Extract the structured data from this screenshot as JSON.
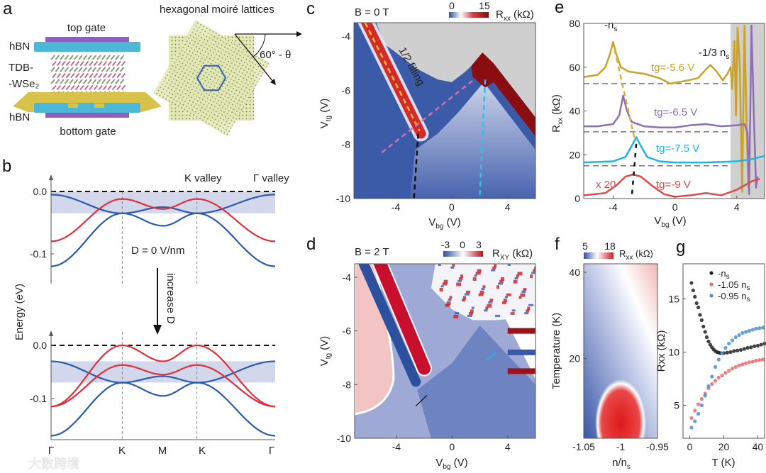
{
  "panel_a": {
    "label": "a",
    "top_gate": "top gate",
    "bottom_gate": "bottom gate",
    "hbn_top": "hBN",
    "hbn_bottom": "hBN",
    "material_line1": "TDB-",
    "material_line2": "-WSe₂",
    "moire_title": "hexagonal moiré lattices",
    "angle_label": "60° - θ"
  },
  "watermark": "大数跨境",
  "chart_data": [
    {
      "panel": "b",
      "label": "b",
      "type": "line",
      "title": "",
      "xlabel": "",
      "ylabel": "Energy (eV)",
      "xticks": [
        "Γ",
        "K",
        "M",
        "K",
        "Γ"
      ],
      "annotations": {
        "k_valley": "K valley",
        "gamma_valley": "Γ valley",
        "d_zero": "D = 0 V/nm",
        "increase_d": "increase D"
      },
      "colors": {
        "k_band": "#e0303c",
        "gamma_band": "#2a5caa",
        "shade": "#c8cde6"
      },
      "subplots": [
        {
          "name": "D = 0 V/nm",
          "yticks": [
            "0.0",
            "-0.1"
          ],
          "ylim": [
            -0.145,
            0.01
          ],
          "shade": [
            -0.035,
            0.0
          ],
          "bands": [
            {
              "valley": "Γ",
              "values": [
                -0.005,
                -0.035,
                -0.055,
                -0.035,
                -0.005
              ]
            },
            {
              "valley": "Γ",
              "values": [
                -0.12,
                -0.035,
                -0.025,
                -0.035,
                -0.12
              ]
            },
            {
              "valley": "K",
              "values": [
                -0.08,
                -0.012,
                -0.028,
                -0.012,
                -0.08
              ]
            }
          ]
        },
        {
          "name": "increased D",
          "yticks": [
            "0.0",
            "-0.1"
          ],
          "ylim": [
            -0.178,
            0.025
          ],
          "shade": [
            -0.07,
            -0.03
          ],
          "bands": [
            {
              "valley": "Γ",
              "values": [
                -0.03,
                -0.07,
                -0.095,
                -0.07,
                -0.03
              ]
            },
            {
              "valley": "Γ",
              "values": [
                -0.17,
                -0.07,
                -0.058,
                -0.07,
                -0.17
              ]
            },
            {
              "valley": "K",
              "values": [
                -0.115,
                0.0,
                -0.03,
                0.0,
                -0.115
              ]
            },
            {
              "valley": "K",
              "values": [
                -0.115,
                -0.037,
                -0.055,
                -0.037,
                -0.115
              ]
            }
          ]
        }
      ]
    },
    {
      "panel": "c",
      "label": "c",
      "type": "heatmap",
      "title": "B = 0 T",
      "xlabel": "V",
      "xlabel_sub": "bg",
      "xlabel_unit": " (V)",
      "ylabel": "V",
      "ylabel_sub": "tg",
      "ylabel_unit": " (V)",
      "xlim": [
        -7,
        6
      ],
      "ylim": [
        -10,
        -3.5
      ],
      "xticks": [
        -4,
        0,
        4
      ],
      "yticks": [
        -4,
        -6,
        -8,
        -10
      ],
      "colorbar": {
        "min": "0",
        "max": "15",
        "label": "R",
        "label_sub": "xx",
        "unit": " (kΩ)"
      },
      "annotation": "1/2 filling"
    },
    {
      "panel": "d",
      "label": "d",
      "type": "heatmap",
      "title": "B = 2 T",
      "xlabel": "V",
      "xlabel_sub": "bg",
      "xlabel_unit": " (V)",
      "ylabel": "V",
      "ylabel_sub": "tg",
      "ylabel_unit": " (V)",
      "xlim": [
        -7,
        6
      ],
      "ylim": [
        -10,
        -3.5
      ],
      "xticks": [
        -4,
        0,
        4
      ],
      "yticks": [
        -4,
        -6,
        -8,
        -10
      ],
      "colorbar": {
        "min": "-3",
        "mid": "0",
        "max": "3",
        "label": "R",
        "label_sub": "XY",
        "unit": " (kΩ)"
      }
    },
    {
      "panel": "e",
      "label": "e",
      "type": "line",
      "xlabel": "V",
      "xlabel_sub": "bg",
      "xlabel_unit": " (V)",
      "ylabel": "R",
      "ylabel_sub": "xx",
      "ylabel_unit": " (kΩ)",
      "xlim": [
        -5.9,
        5.8
      ],
      "ylim": [
        0,
        80
      ],
      "xticks": [
        -4,
        0,
        4
      ],
      "yticks": [
        0,
        20,
        40,
        60,
        80
      ],
      "shaded_from": 3.6,
      "baselines": [
        52.5,
        30.5,
        15
      ],
      "annotations": {
        "neg_ns": "-n",
        "neg_ns_sub": "s",
        "third": "-1/3 n",
        "third_sub": "s",
        "x20": "x 20"
      },
      "series": [
        {
          "name": "tg=-5.6 V",
          "color": "#c9a227",
          "points": [
            [
              -5.9,
              55.5
            ],
            [
              -5,
              56.5
            ],
            [
              -4.5,
              60
            ],
            [
              -4.2,
              66
            ],
            [
              -4.0,
              71.5
            ],
            [
              -3.8,
              66
            ],
            [
              -3.5,
              60
            ],
            [
              -3,
              58
            ],
            [
              -2,
              57
            ],
            [
              -1,
              55
            ],
            [
              -0.3,
              52.5
            ],
            [
              0.5,
              53.5
            ],
            [
              1.5,
              55
            ],
            [
              2.0,
              59
            ],
            [
              2.3,
              61
            ],
            [
              2.7,
              58
            ],
            [
              3.1,
              54
            ],
            [
              3.4,
              57
            ],
            [
              3.6,
              60
            ],
            [
              3.7,
              50
            ],
            [
              3.85,
              72
            ],
            [
              3.95,
              38
            ],
            [
              4.05,
              78
            ],
            [
              4.2,
              60
            ],
            [
              4.35,
              3
            ],
            [
              4.5,
              79
            ],
            [
              4.65,
              30
            ],
            [
              4.75,
              5
            ]
          ]
        },
        {
          "name": "tg=-6.5 V",
          "color": "#8e6fb5",
          "points": [
            [
              -5.9,
              33
            ],
            [
              -5,
              33
            ],
            [
              -4,
              34
            ],
            [
              -3.6,
              38
            ],
            [
              -3.35,
              47
            ],
            [
              -3.1,
              40
            ],
            [
              -2.8,
              35
            ],
            [
              -2,
              33
            ],
            [
              -1,
              32.5
            ],
            [
              0,
              32.5
            ],
            [
              1,
              33.5
            ],
            [
              2,
              34
            ],
            [
              3,
              33
            ],
            [
              4,
              33.5
            ],
            [
              4.5,
              34
            ],
            [
              4.7,
              30
            ],
            [
              4.8,
              2
            ],
            [
              4.95,
              79
            ],
            [
              5.1,
              40
            ],
            [
              5.25,
              5
            ],
            [
              5.35,
              10
            ]
          ]
        },
        {
          "name": "tg=-7.5 V",
          "color": "#1eb4e0",
          "points": [
            [
              -5.9,
              16.5
            ],
            [
              -4,
              17
            ],
            [
              -3.2,
              19
            ],
            [
              -2.8,
              24
            ],
            [
              -2.5,
              28
            ],
            [
              -2.2,
              24
            ],
            [
              -1.8,
              19
            ],
            [
              -1,
              17
            ],
            [
              0,
              16.5
            ],
            [
              2,
              16.5
            ],
            [
              4,
              17
            ],
            [
              5,
              18
            ],
            [
              5.8,
              19.5
            ]
          ]
        },
        {
          "name": "tg=-9 V",
          "color": "#e04a4a",
          "points": [
            [
              -5.9,
              1.5
            ],
            [
              -4.5,
              2.5
            ],
            [
              -3.8,
              6
            ],
            [
              -3.2,
              10
            ],
            [
              -2.7,
              11
            ],
            [
              -2.2,
              10
            ],
            [
              -1.5,
              6
            ],
            [
              -0.7,
              2
            ],
            [
              0,
              0.8
            ],
            [
              1,
              1.5
            ],
            [
              2,
              2.5
            ],
            [
              2.5,
              2
            ],
            [
              3,
              1.5
            ],
            [
              4,
              4
            ],
            [
              5,
              8
            ],
            [
              5.5,
              9
            ]
          ]
        }
      ]
    },
    {
      "panel": "f",
      "label": "f",
      "type": "heatmap",
      "xlabel": "n/n",
      "xlabel_sub": "s",
      "ylabel": "Temperature (K)",
      "xlim": [
        -1.05,
        -0.95
      ],
      "ylim": [
        1.5,
        42
      ],
      "xticks": [
        "-1.05",
        "-1",
        "-0.95"
      ],
      "yticks": [
        20,
        40
      ],
      "colorbar": {
        "min": "5",
        "max": "18",
        "label": "R",
        "label_sub": "xx",
        "unit": " (kΩ)"
      }
    },
    {
      "panel": "g",
      "label": "g",
      "type": "scatter",
      "xlabel": "T (K)",
      "ylabel": "Rxx (kΩ)",
      "xlim": [
        -4,
        44
      ],
      "ylim": [
        1.9,
        18.3
      ],
      "xticks": [
        0,
        20,
        40
      ],
      "yticks": [
        5,
        10,
        15
      ],
      "legend": "top-right",
      "series": [
        {
          "name": "-n",
          "name_sub": "s",
          "color": "#222222",
          "T": [
            1,
            2,
            3,
            4,
            5,
            6,
            7,
            8,
            9,
            10,
            11,
            12,
            13,
            14,
            15,
            16,
            17,
            18,
            20,
            22,
            24,
            26,
            28,
            30,
            32,
            34,
            36,
            38,
            40,
            42,
            44
          ],
          "R": [
            16.5,
            15.8,
            15.2,
            14.6,
            14.2,
            13.5,
            13.0,
            12.4,
            11.9,
            11.4,
            11.0,
            10.7,
            10.45,
            10.25,
            10.1,
            10.0,
            9.95,
            9.9,
            9.9,
            9.95,
            10.0,
            10.1,
            10.15,
            10.2,
            10.3,
            10.4,
            10.45,
            10.55,
            10.6,
            10.7,
            10.8
          ]
        },
        {
          "name": "-1.05 n",
          "name_sub": "s",
          "color": "#e86a6a",
          "T": [
            1,
            3,
            5,
            7,
            9,
            11,
            13,
            15,
            17,
            19,
            21,
            23,
            25,
            27,
            29,
            31,
            33,
            35,
            37,
            39,
            41,
            43
          ],
          "R": [
            3.8,
            4.5,
            5.1,
            5.6,
            6.1,
            6.6,
            7.0,
            7.3,
            7.6,
            7.8,
            8.05,
            8.25,
            8.45,
            8.6,
            8.75,
            8.85,
            8.95,
            9.05,
            9.1,
            9.2,
            9.25,
            9.3
          ]
        },
        {
          "name": "-0.95 n",
          "name_sub": "s",
          "color": "#4a90d0",
          "T": [
            1,
            3,
            5,
            7,
            9,
            11,
            13,
            15,
            17,
            19,
            21,
            23,
            25,
            27,
            29,
            31,
            33,
            35,
            37,
            39,
            41,
            43
          ],
          "R": [
            2.9,
            3.5,
            4.2,
            5.0,
            5.9,
            6.8,
            7.7,
            8.6,
            9.3,
            9.9,
            10.4,
            10.8,
            11.1,
            11.4,
            11.6,
            11.8,
            11.9,
            12.0,
            12.1,
            12.2,
            12.25,
            12.3
          ]
        }
      ]
    }
  ]
}
